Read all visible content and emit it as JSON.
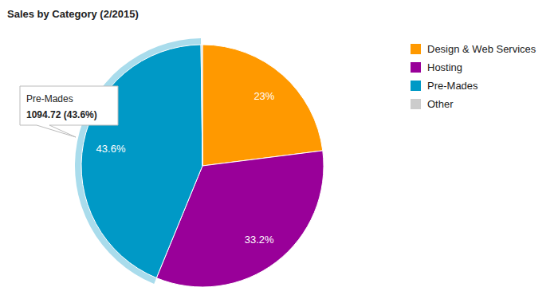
{
  "chart_data": {
    "type": "pie",
    "title": "Sales by Category (2/2015)",
    "categories": [
      "Design & Web Services",
      "Hosting",
      "Pre-Mades",
      "Other"
    ],
    "values": [
      23,
      33.2,
      43.6,
      0.2
    ],
    "colors": [
      "#ff9900",
      "#990099",
      "#0099c6",
      "#cccccc"
    ],
    "data_labels": true,
    "value_labels": [
      "23%",
      "33.2%",
      "43.6%",
      null
    ],
    "legend": "right",
    "annotation": {
      "title": "Pre-Mades",
      "text": "1094.72 (43.6%)"
    }
  }
}
